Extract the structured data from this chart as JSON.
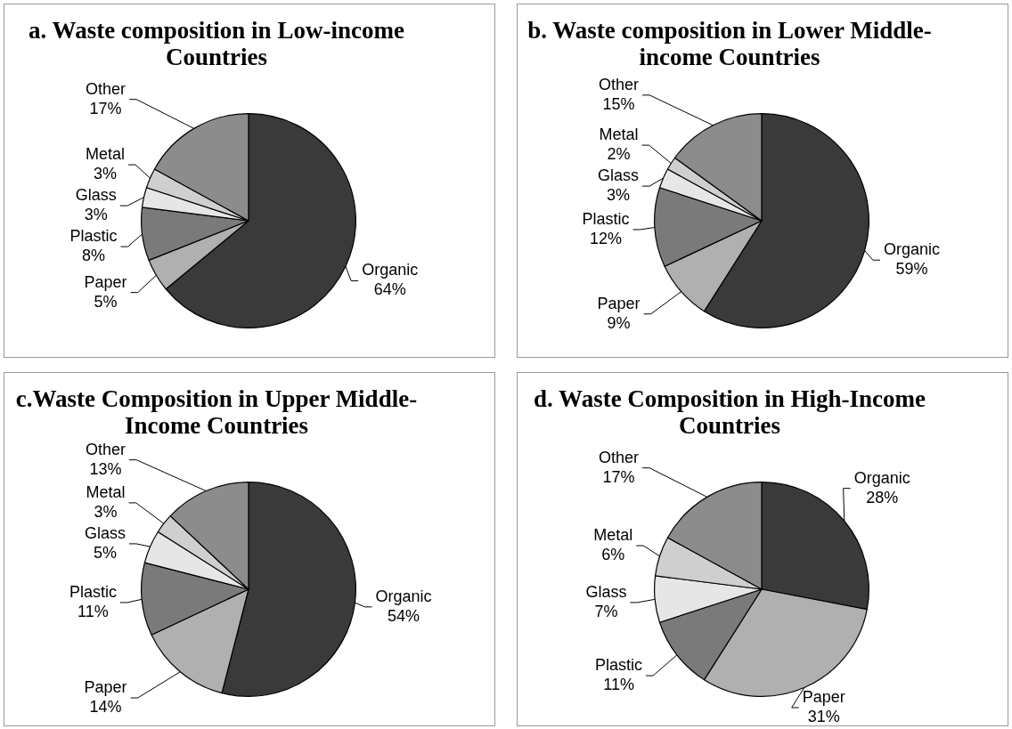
{
  "chart_data": [
    {
      "type": "pie",
      "title": "a. Waste composition in Low-income Countries",
      "categories": [
        "Organic",
        "Paper",
        "Plastic",
        "Glass",
        "Metal",
        "Other"
      ],
      "values": [
        64,
        5,
        8,
        3,
        3,
        17
      ],
      "value_labels": [
        "64%",
        "5%",
        "8%",
        "3%",
        "3%",
        "17%"
      ],
      "colors": [
        "#3a3a3a",
        "#b0b0b0",
        "#7a7a7a",
        "#e6e6e6",
        "#cfcfcf",
        "#8c8c8c"
      ]
    },
    {
      "type": "pie",
      "title": "b. Waste composition in Lower Middle-income Countries",
      "categories": [
        "Organic",
        "Paper",
        "Plastic",
        "Glass",
        "Metal",
        "Other"
      ],
      "values": [
        59,
        9,
        12,
        3,
        2,
        15
      ],
      "value_labels": [
        "59%",
        "9%",
        "12%",
        "3%",
        "2%",
        "15%"
      ],
      "colors": [
        "#3a3a3a",
        "#b0b0b0",
        "#7a7a7a",
        "#e6e6e6",
        "#cfcfcf",
        "#8c8c8c"
      ]
    },
    {
      "type": "pie",
      "title": "c.Waste Composition in Upper Middle-Income Countries",
      "categories": [
        "Organic",
        "Paper",
        "Plastic",
        "Glass",
        "Metal",
        "Other"
      ],
      "values": [
        54,
        14,
        11,
        5,
        3,
        13
      ],
      "value_labels": [
        "54%",
        "14%",
        "11%",
        "5%",
        "3%",
        "13%"
      ],
      "colors": [
        "#3a3a3a",
        "#b0b0b0",
        "#7a7a7a",
        "#e6e6e6",
        "#cfcfcf",
        "#8c8c8c"
      ]
    },
    {
      "type": "pie",
      "title": "d. Waste Composition in High-Income Countries",
      "categories": [
        "Organic",
        "Paper",
        "Plastic",
        "Glass",
        "Metal",
        "Other"
      ],
      "values": [
        28,
        31,
        11,
        7,
        6,
        17
      ],
      "value_labels": [
        "28%",
        "31%",
        "11%",
        "7%",
        "6%",
        "17%"
      ],
      "colors": [
        "#3a3a3a",
        "#b0b0b0",
        "#7a7a7a",
        "#e6e6e6",
        "#cfcfcf",
        "#8c8c8c"
      ]
    }
  ]
}
